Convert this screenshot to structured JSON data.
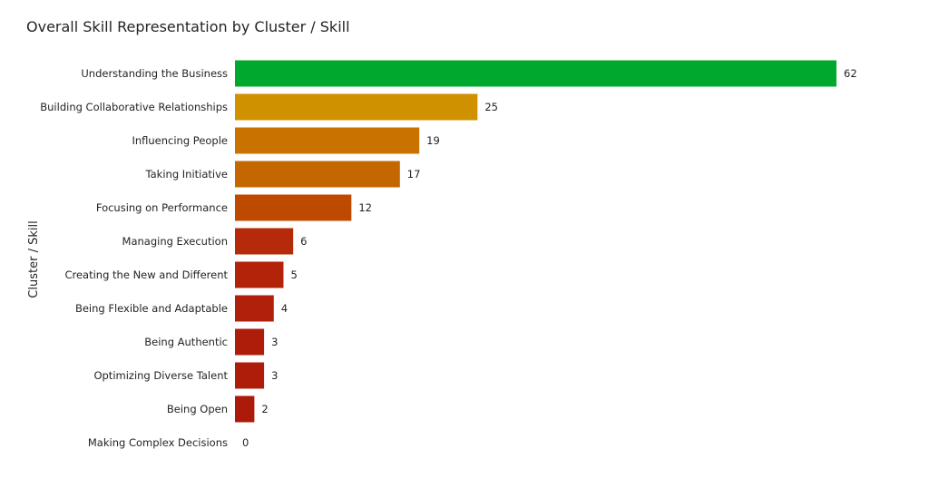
{
  "chart_data": {
    "type": "bar",
    "orientation": "horizontal",
    "title": "Overall Skill Representation by Cluster / Skill",
    "xlabel": "",
    "ylabel": "Cluster / Skill",
    "xlim": [
      0,
      62
    ],
    "grid": false,
    "legend": "none",
    "categories": [
      "Understanding the Business",
      "Building Collaborative Relationships",
      "Influencing People",
      "Taking Initiative",
      "Focusing on Performance",
      "Managing Execution",
      "Creating the New and Different",
      "Being Flexible and Adaptable",
      "Being Authentic",
      "Optimizing Diverse Talent",
      "Being Open",
      "Making Complex Decisions"
    ],
    "values": [
      62,
      25,
      19,
      17,
      12,
      6,
      5,
      4,
      3,
      3,
      2,
      0
    ],
    "colors": [
      "#00A82D",
      "#D09100",
      "#C97200",
      "#C46700",
      "#BE4A00",
      "#B52A08",
      "#B2230A",
      "#B0200A",
      "#AE1C0A",
      "#AE1C0A",
      "#AC1A0A",
      "#AC1A0A"
    ]
  }
}
